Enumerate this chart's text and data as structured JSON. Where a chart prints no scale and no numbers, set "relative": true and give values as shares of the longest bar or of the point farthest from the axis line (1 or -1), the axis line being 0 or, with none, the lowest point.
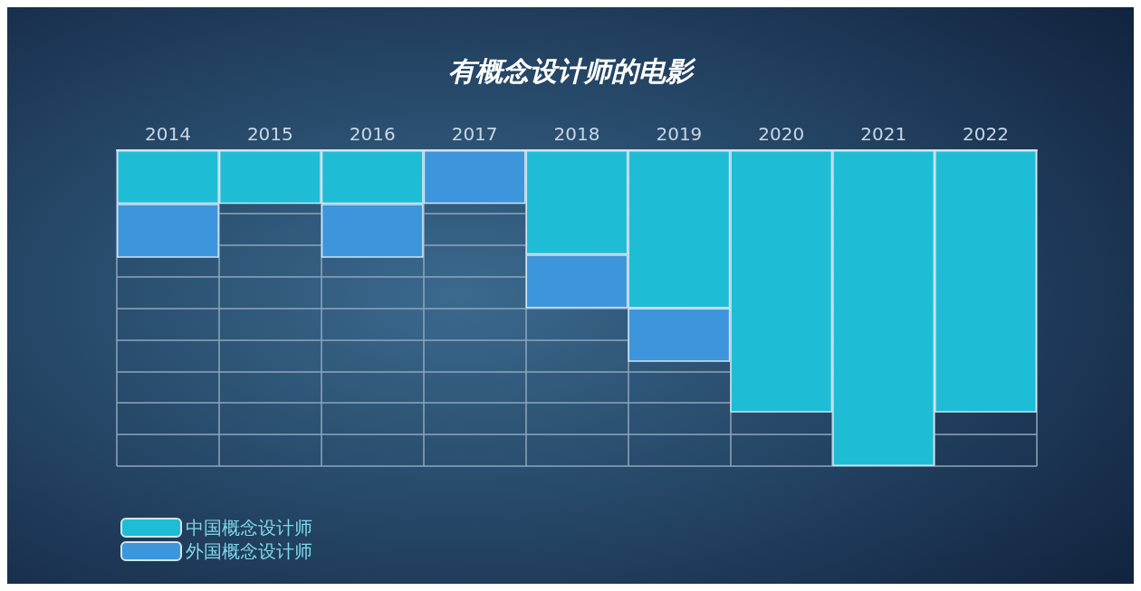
{
  "chart_data": {
    "type": "bar",
    "title": "有概念设计师的电影",
    "relative": true,
    "stacked": true,
    "grid": true,
    "legend": "bottom left",
    "tick_labels": "x",
    "categories": [
      "2014",
      "2015",
      "2016",
      "2017",
      "2018",
      "2019",
      "2020",
      "2021",
      "2022"
    ],
    "series": [
      {
        "name": "中国概念设计师",
        "color": "#1fbcd6",
        "values": [
          -0.17,
          -0.17,
          -0.17,
          0,
          -0.33,
          -0.5,
          -0.83,
          -1,
          -0.83
        ]
      },
      {
        "name": "外国概念设计师",
        "color": "#3d95dc",
        "values": [
          -0.17,
          0,
          -0.17,
          -0.17,
          -0.17,
          -0.17,
          0,
          0,
          0
        ]
      }
    ]
  }
}
